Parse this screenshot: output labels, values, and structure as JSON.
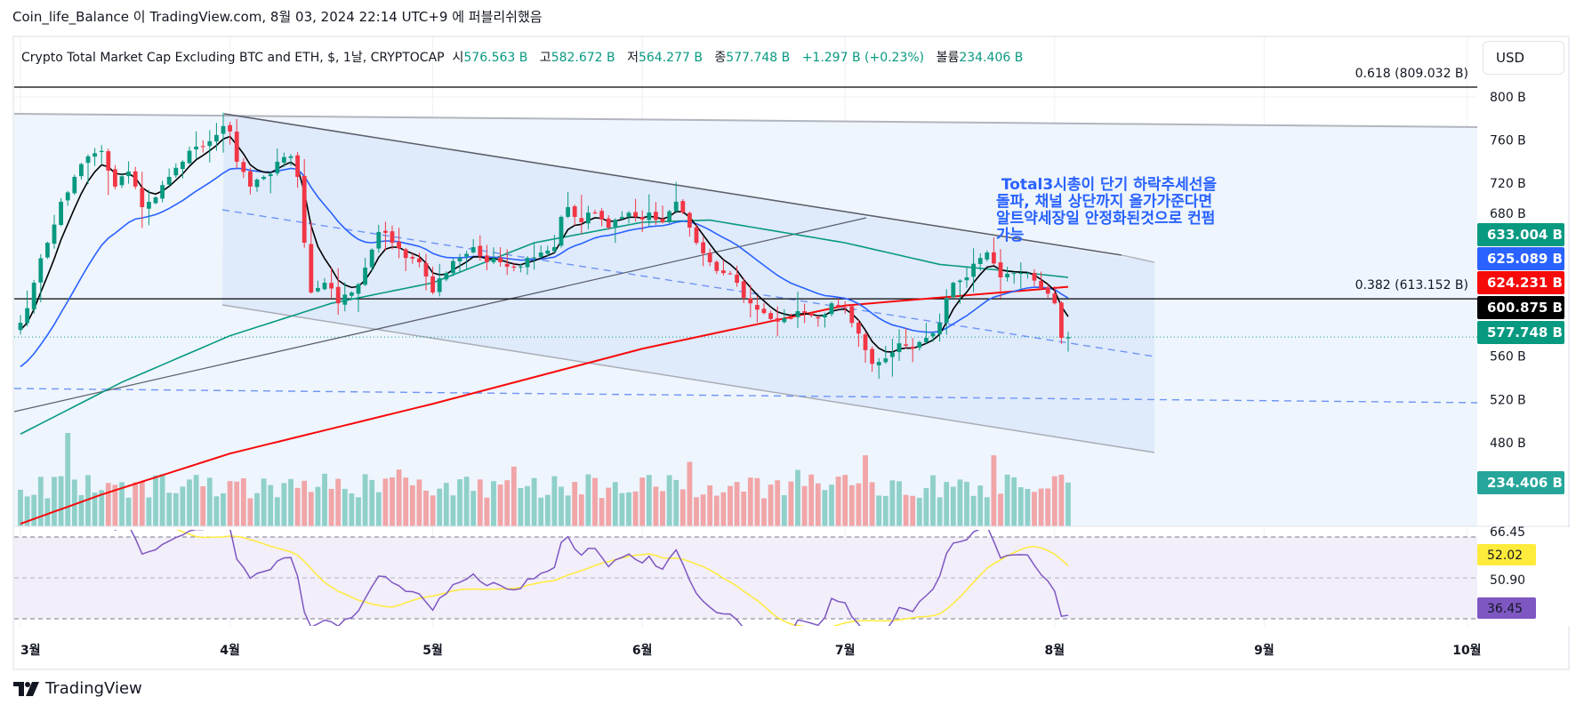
{
  "header": {
    "published": "Coin_life_Balance 이 TradingView.com, 8월 03, 2024 22:14 UTC+9 에 퍼블리쉬했음"
  },
  "legend": {
    "symbol": "Crypto Total Market Cap Excluding BTC and ETH, $, 1날, CRYPTOCAP",
    "open_label": "시",
    "open": "576.563 B",
    "high_label": "고",
    "high": "582.672 B",
    "low_label": "저",
    "low": "564.277 B",
    "close_label": "종",
    "close": "577.748 B",
    "change": "+1.297 B (+0.23%)",
    "volume_label": "볼륨",
    "volume": "234.406 B"
  },
  "currency_button": "USD",
  "fib": [
    {
      "label": "0.618 (809.032 B)",
      "price": 809.032
    },
    {
      "label": "0.382 (613.152 B)",
      "price": 613.152
    }
  ],
  "price_axis": [
    "800 B",
    "760 B",
    "720 B",
    "680 B",
    "560 B",
    "520 B",
    "480 B"
  ],
  "price_ticks": [
    800,
    760,
    720,
    680,
    560,
    520,
    480
  ],
  "badges": [
    {
      "text": "633.004 B",
      "color": "#089981"
    },
    {
      "text": "625.089 B",
      "color": "#2962ff"
    },
    {
      "text": "624.231 B",
      "color": "#f70a0a"
    },
    {
      "text": "600.875 B",
      "color": "#000000"
    },
    {
      "text": "577.748 B",
      "color": "#089981"
    },
    {
      "text": "234.406 B",
      "color": "#26a69a"
    }
  ],
  "rsi": {
    "ticks": [
      "66.45",
      "50.90"
    ],
    "badges": [
      {
        "text": "52.02",
        "color": "#ffeb3b",
        "textColor": "#131722"
      },
      {
        "text": "36.45",
        "color": "#7e57c2",
        "textColor": "#ffffff"
      }
    ]
  },
  "time_axis": [
    "3월",
    "4월",
    "5월",
    "6월",
    "7월",
    "8월",
    "9월",
    "10월"
  ],
  "time_axis_days": [
    0,
    31,
    61,
    92,
    122,
    153,
    184,
    214
  ],
  "annotation": " Total3시총이 단기 하락추세선을\n돌파, 채널 상단까지 올가가준다면\n알트약세장일 안정화된것으로 컨펌\n가능",
  "brand": "TradingView",
  "colors": {
    "up": "#089981",
    "down": "#f23645",
    "volUp": "#8fd0c9",
    "volDown": "#f1a5a7",
    "ema_fast": "#000000",
    "ema20": "#2962ff",
    "ma_mid": "#089981",
    "ma_long": "#f70a0a",
    "rsi": "#7e57c2",
    "rsi_ma": "#ffeb3b"
  },
  "chart_data": {
    "type": "candlestick",
    "start": "2024-03-01",
    "last_ohlc": [
      576.563,
      582.672,
      564.277,
      577.748
    ],
    "last_volume": 234.406,
    "close_keyframes": [
      [
        0,
        591
      ],
      [
        2,
        628
      ],
      [
        4,
        665
      ],
      [
        6,
        703
      ],
      [
        8,
        726
      ],
      [
        10,
        745
      ],
      [
        12,
        750
      ],
      [
        14,
        717
      ],
      [
        16,
        731
      ],
      [
        18,
        698
      ],
      [
        20,
        707
      ],
      [
        22,
        726
      ],
      [
        24,
        740
      ],
      [
        26,
        754
      ],
      [
        28,
        759
      ],
      [
        30,
        773
      ],
      [
        31,
        768
      ],
      [
        32,
        740
      ],
      [
        34,
        717
      ],
      [
        36,
        726
      ],
      [
        38,
        740
      ],
      [
        40,
        745
      ],
      [
        41,
        726
      ],
      [
        42,
        665
      ],
      [
        43,
        619
      ],
      [
        45,
        628
      ],
      [
        47,
        609
      ],
      [
        49,
        619
      ],
      [
        51,
        642
      ],
      [
        53,
        675
      ],
      [
        55,
        665
      ],
      [
        57,
        651
      ],
      [
        59,
        647
      ],
      [
        61,
        619
      ],
      [
        63,
        637
      ],
      [
        65,
        651
      ],
      [
        67,
        661
      ],
      [
        69,
        647
      ],
      [
        71,
        647
      ],
      [
        73,
        642
      ],
      [
        75,
        651
      ],
      [
        77,
        656
      ],
      [
        79,
        661
      ],
      [
        80,
        689
      ],
      [
        81,
        698
      ],
      [
        83,
        684
      ],
      [
        85,
        693
      ],
      [
        87,
        679
      ],
      [
        89,
        689
      ],
      [
        91,
        689
      ],
      [
        93,
        693
      ],
      [
        95,
        684
      ],
      [
        97,
        703
      ],
      [
        98,
        693
      ],
      [
        100,
        665
      ],
      [
        102,
        647
      ],
      [
        104,
        637
      ],
      [
        106,
        628
      ],
      [
        108,
        609
      ],
      [
        110,
        600
      ],
      [
        112,
        592
      ],
      [
        114,
        595
      ],
      [
        116,
        600
      ],
      [
        118,
        595
      ],
      [
        120,
        609
      ],
      [
        122,
        605
      ],
      [
        124,
        581
      ],
      [
        126,
        553
      ],
      [
        128,
        558
      ],
      [
        130,
        572
      ],
      [
        132,
        567
      ],
      [
        134,
        577
      ],
      [
        136,
        591
      ],
      [
        138,
        628
      ],
      [
        140,
        633
      ],
      [
        142,
        651
      ],
      [
        143,
        656
      ],
      [
        145,
        633
      ],
      [
        147,
        637
      ],
      [
        149,
        637
      ],
      [
        151,
        623
      ],
      [
        153,
        609
      ],
      [
        154,
        577
      ],
      [
        155,
        577.748
      ]
    ],
    "ma_long_keyframes": [
      [
        0,
        405
      ],
      [
        12,
        432
      ],
      [
        31,
        470
      ],
      [
        61,
        516
      ],
      [
        92,
        567
      ],
      [
        122,
        607
      ],
      [
        155,
        624.231
      ]
    ],
    "ma_mid_keyframes": [
      [
        0,
        488
      ],
      [
        15,
        536
      ],
      [
        31,
        579
      ],
      [
        46,
        609
      ],
      [
        61,
        628
      ],
      [
        76,
        665
      ],
      [
        92,
        684
      ],
      [
        102,
        686
      ],
      [
        122,
        665
      ],
      [
        136,
        645
      ],
      [
        146,
        639
      ],
      [
        155,
        633.004
      ]
    ],
    "ema20_seed": 546
  }
}
